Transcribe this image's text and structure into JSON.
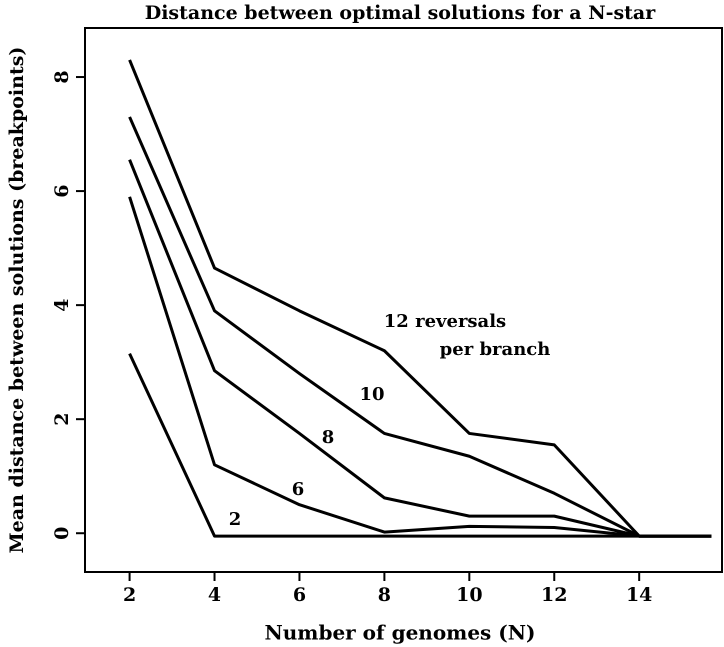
{
  "chart_data": {
    "type": "line",
    "title": "Distance between optimal solutions for a N-star",
    "xlabel": "Number of genomes (N)",
    "ylabel": "Mean distance between solutions (breakpoints)",
    "x": [
      2,
      4,
      6,
      8,
      10,
      12,
      14,
      15.7
    ],
    "series": [
      {
        "name": "12",
        "color": "#000000",
        "values": [
          8.3,
          4.65,
          3.9,
          3.2,
          1.75,
          1.55,
          -0.05,
          -0.05
        ]
      },
      {
        "name": "10",
        "color": "#000000",
        "values": [
          7.3,
          3.9,
          2.8,
          1.75,
          1.35,
          0.7,
          -0.05,
          -0.05
        ]
      },
      {
        "name": "8",
        "color": "#000000",
        "values": [
          6.55,
          2.85,
          1.75,
          0.62,
          0.3,
          0.3,
          -0.05,
          -0.05
        ]
      },
      {
        "name": "6",
        "color": "#000000",
        "values": [
          5.9,
          1.2,
          0.5,
          0.02,
          0.12,
          0.1,
          -0.05,
          -0.05
        ]
      },
      {
        "name": "2",
        "color": "#000000",
        "values": [
          3.15,
          -0.05,
          -0.05,
          -0.05,
          -0.05,
          -0.05,
          -0.05,
          -0.05
        ]
      }
    ],
    "annotations": [
      "12 reversals",
      "per branch",
      "10",
      "8",
      "6",
      "2"
    ],
    "xlim": [
      0.95,
      15.95
    ],
    "xticks": [
      2,
      4,
      6,
      8,
      10,
      12,
      14
    ],
    "ylim": [
      -0.68,
      8.86
    ],
    "yticks": [
      0,
      2,
      4,
      6,
      8
    ],
    "grid": false
  }
}
